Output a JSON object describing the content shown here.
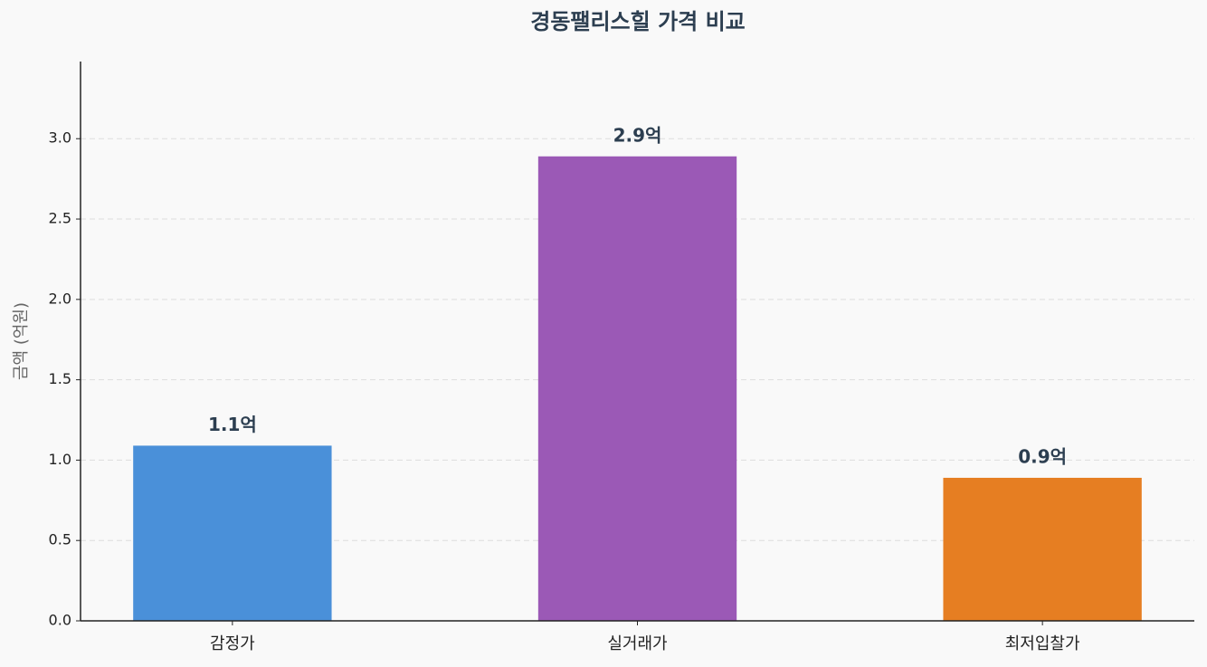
{
  "chart_data": {
    "type": "bar",
    "title": "경동팰리스힐 가격 비교",
    "y_label": "금액 (억원)",
    "categories": [
      "감정가",
      "실거래가",
      "최저입찰가"
    ],
    "values": [
      1.09,
      2.89,
      0.89
    ],
    "value_labels": [
      "1.1억",
      "2.9억",
      "0.9억"
    ],
    "colors": [
      "#4a90d9",
      "#9b59b6",
      "#e67e22"
    ],
    "ylim": [
      0,
      3.48
    ],
    "yticks": [
      {
        "value": 0,
        "label": "0.0"
      },
      0.5,
      {
        "value": 1,
        "label": "1.0"
      },
      1.5,
      {
        "value": 2,
        "label": "2.0"
      },
      2.5,
      {
        "value": 3,
        "label": "3.0"
      }
    ],
    "grid": true
  }
}
